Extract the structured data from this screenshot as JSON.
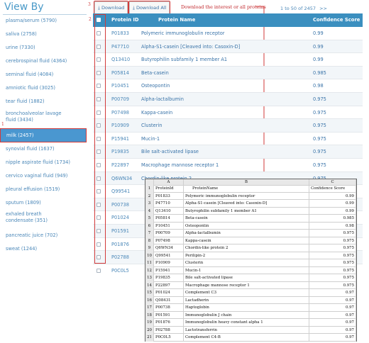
{
  "sidebar": {
    "title": "View By",
    "items": [
      {
        "label": "plasma/serum  (5790)"
      },
      {
        "label": "saliva (2758)"
      },
      {
        "label": "urine (7330)"
      },
      {
        "label": "cerebrospinal fluid (4364)"
      },
      {
        "label": "seminal fluid (4084)"
      },
      {
        "label": "amniotic fluid (3025)"
      },
      {
        "label": "tear fluid (1882)"
      },
      {
        "label": "bronchoalveolar lavage fluid (3434)"
      },
      {
        "label": "milk (2457)",
        "active": true
      },
      {
        "label": "synovial fluid  (1637)"
      },
      {
        "label": "nipple aspirate fluid (1734)"
      },
      {
        "label": "cervico vaginal fluid (949)"
      },
      {
        "label": "pleural effusion (1519)"
      },
      {
        "label": "sputum (1809)"
      },
      {
        "label": "exhaled breath condensate (351)"
      },
      {
        "label": "pancreatic juice (702)"
      },
      {
        "label": "sweat (1244)"
      }
    ]
  },
  "annotations": {
    "n1": "1",
    "n2": "2",
    "n3": "3",
    "n4": "4",
    "note": "Download the interest or all proteins"
  },
  "toolbar": {
    "download_label": "⤓ Download",
    "download_all_label": "⤓ Download All",
    "pagination": "1 to 50 of 2457",
    "next": ">>"
  },
  "table": {
    "headers": {
      "id": "Protein ID",
      "name": "Protein Name",
      "score": "Confidence Score"
    },
    "rows": [
      {
        "id": "P01833",
        "name": "Polymeric immunoglobulin receptor",
        "score": "0.99"
      },
      {
        "id": "P47710",
        "name": "Alpha-S1-casein [Cleaved into: Casoxin-D]",
        "score": "0.99"
      },
      {
        "id": "Q13410",
        "name": "Butyrophilin subfamily 1 member A1",
        "score": "0.99"
      },
      {
        "id": "P05814",
        "name": "Beta-casein",
        "score": "0.985"
      },
      {
        "id": "P10451",
        "name": "Osteopontin",
        "score": "0.98"
      },
      {
        "id": "P00709",
        "name": "Alpha-lactalbumin",
        "score": "0.975"
      },
      {
        "id": "P07498",
        "name": "Kappa-casein",
        "score": "0.975"
      },
      {
        "id": "P10909",
        "name": "Clusterin",
        "score": "0.975"
      },
      {
        "id": "P15941",
        "name": "Mucin-1",
        "score": "0.975"
      },
      {
        "id": "P19835",
        "name": "Bile salt-activated lipase",
        "score": "0.975"
      },
      {
        "id": "P22897",
        "name": "Macrophage mannose receptor 1",
        "score": "0.975"
      },
      {
        "id": "Q6WN34",
        "name": "Chordin-like protein 2",
        "score": "0.975"
      },
      {
        "id": "Q99541",
        "name": "",
        "score": ""
      },
      {
        "id": "P00738",
        "name": "",
        "score": ""
      },
      {
        "id": "P01024",
        "name": "",
        "score": ""
      },
      {
        "id": "P01591",
        "name": "",
        "score": ""
      },
      {
        "id": "P01876",
        "name": "",
        "score": ""
      },
      {
        "id": "P02788",
        "name": "",
        "score": ""
      },
      {
        "id": "P0C0L5",
        "name": "",
        "score": ""
      }
    ]
  },
  "spreadsheet": {
    "col_letters": [
      "A",
      "B",
      "C"
    ],
    "header": {
      "a": "ProteinId",
      "b": "ProteinName",
      "c": "Confidence Score"
    },
    "rows": [
      {
        "n": "2",
        "a": "P01833",
        "b": "Polymeric immunoglobulin receptor",
        "c": "0.99"
      },
      {
        "n": "3",
        "a": "P47710",
        "b": "Alpha-S1-casein [Cleaved into: Casoxin-D]",
        "c": "0.99"
      },
      {
        "n": "4",
        "a": "Q13410",
        "b": "Butyrophilin subfamily 1 member A1",
        "c": "0.99"
      },
      {
        "n": "5",
        "a": "P05814",
        "b": "Beta-casein",
        "c": "0.985"
      },
      {
        "n": "6",
        "a": "P10451",
        "b": "Osteopontin",
        "c": "0.98"
      },
      {
        "n": "7",
        "a": "P00709",
        "b": "Alpha-lactalbumin",
        "c": "0.975"
      },
      {
        "n": "8",
        "a": "P07498",
        "b": "Kappa-casein",
        "c": "0.975"
      },
      {
        "n": "9",
        "a": "Q6WN34",
        "b": "Chordin-like protein 2",
        "c": "0.975"
      },
      {
        "n": "10",
        "a": "Q99541",
        "b": "Perilipin-2",
        "c": "0.975"
      },
      {
        "n": "11",
        "a": "P10909",
        "b": "Clusterin",
        "c": "0.975"
      },
      {
        "n": "12",
        "a": "P15941",
        "b": "Mucin-1",
        "c": "0.975"
      },
      {
        "n": "13",
        "a": "P19835",
        "b": "Bile salt-activated lipase",
        "c": "0.975"
      },
      {
        "n": "14",
        "a": "P22897",
        "b": "Macrophage mannose receptor 1",
        "c": "0.975"
      },
      {
        "n": "15",
        "a": "P01024",
        "b": "Complement C3",
        "c": "0.97"
      },
      {
        "n": "16",
        "a": "Q08431",
        "b": "Lactadherin",
        "c": "0.97"
      },
      {
        "n": "17",
        "a": "P00738",
        "b": "Haptoglobin",
        "c": "0.97"
      },
      {
        "n": "18",
        "a": "P01591",
        "b": "Immunoglobulin J chain",
        "c": "0.97"
      },
      {
        "n": "19",
        "a": "P01876",
        "b": "Immunoglobulin heavy constant alpha 1",
        "c": "0.97"
      },
      {
        "n": "20",
        "a": "P02788",
        "b": "Lactotransferrin",
        "c": "0.97"
      },
      {
        "n": "21",
        "a": "P0C0L5",
        "b": "Complement C4-B",
        "c": "0.97"
      }
    ]
  },
  "colors": {
    "accent": "#3b8fbf",
    "highlight": "#d23a3a",
    "link": "#4a87b8"
  }
}
